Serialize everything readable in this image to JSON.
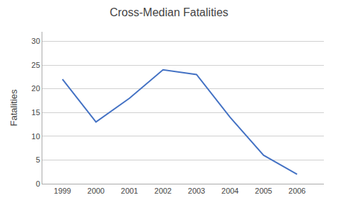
{
  "chart_data": {
    "type": "line",
    "title": "Cross-Median Fatalities",
    "ylabel": "Fatalities",
    "x": [
      1999,
      2000,
      2001,
      2002,
      2003,
      2004,
      2005,
      2006
    ],
    "values": [
      22,
      13,
      18,
      24,
      23,
      14,
      6,
      2
    ],
    "color": "#4472C4",
    "xlim": [
      1998.4,
      2006.8
    ],
    "xticks": [
      1999,
      2000,
      2001,
      2002,
      2003,
      2004,
      2005,
      2006
    ],
    "ylim": [
      0,
      32
    ],
    "yticks": [
      0,
      5,
      10,
      15,
      20,
      25,
      30
    ],
    "grid": true
  }
}
